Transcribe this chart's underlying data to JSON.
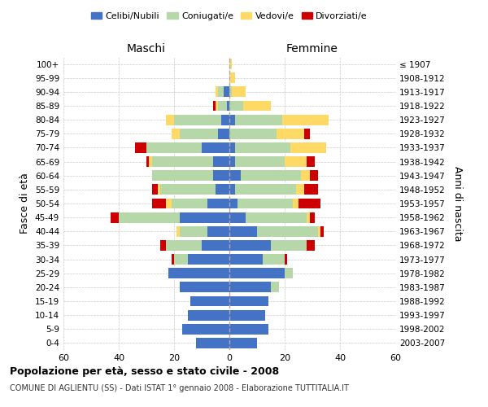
{
  "age_groups": [
    "100+",
    "95-99",
    "90-94",
    "85-89",
    "80-84",
    "75-79",
    "70-74",
    "65-69",
    "60-64",
    "55-59",
    "50-54",
    "45-49",
    "40-44",
    "35-39",
    "30-34",
    "25-29",
    "20-24",
    "15-19",
    "10-14",
    "5-9",
    "0-4"
  ],
  "birth_years": [
    "≤ 1907",
    "1908-1912",
    "1913-1917",
    "1918-1922",
    "1923-1927",
    "1928-1932",
    "1933-1937",
    "1938-1942",
    "1943-1947",
    "1948-1952",
    "1953-1957",
    "1958-1962",
    "1963-1967",
    "1968-1972",
    "1973-1977",
    "1978-1982",
    "1983-1987",
    "1988-1992",
    "1993-1997",
    "1998-2002",
    "2003-2007"
  ],
  "male_celibi": [
    0,
    0,
    2,
    1,
    3,
    4,
    10,
    6,
    6,
    5,
    8,
    18,
    8,
    10,
    15,
    22,
    18,
    14,
    15,
    17,
    12
  ],
  "male_coniugati": [
    0,
    0,
    2,
    3,
    17,
    14,
    20,
    22,
    22,
    20,
    13,
    22,
    10,
    13,
    5,
    0,
    0,
    0,
    0,
    0,
    0
  ],
  "male_vedovi": [
    0,
    0,
    1,
    1,
    3,
    3,
    0,
    1,
    0,
    1,
    2,
    0,
    1,
    0,
    0,
    0,
    0,
    0,
    0,
    0,
    0
  ],
  "male_divorziati": [
    0,
    0,
    0,
    1,
    0,
    0,
    4,
    1,
    0,
    2,
    5,
    3,
    0,
    2,
    1,
    0,
    0,
    0,
    0,
    0,
    0
  ],
  "female_nubili": [
    0,
    0,
    0,
    0,
    2,
    0,
    2,
    2,
    4,
    2,
    3,
    6,
    10,
    15,
    12,
    20,
    15,
    14,
    13,
    14,
    10
  ],
  "female_coniugate": [
    0,
    0,
    1,
    5,
    17,
    17,
    20,
    18,
    22,
    22,
    20,
    22,
    22,
    13,
    8,
    3,
    3,
    0,
    0,
    0,
    0
  ],
  "female_vedove": [
    1,
    2,
    5,
    10,
    17,
    10,
    13,
    8,
    3,
    3,
    2,
    1,
    1,
    0,
    0,
    0,
    0,
    0,
    0,
    0,
    0
  ],
  "female_divorziate": [
    0,
    0,
    0,
    0,
    0,
    2,
    0,
    3,
    3,
    5,
    8,
    2,
    1,
    3,
    1,
    0,
    0,
    0,
    0,
    0,
    0
  ],
  "color_celibi": "#4472C4",
  "color_coniugati": "#b6d7a8",
  "color_vedovi": "#FFD966",
  "color_divorziati": "#CC0000",
  "title": "Popolazione per età, sesso e stato civile - 2008",
  "subtitle": "COMUNE DI AGLIENTU (SS) - Dati ISTAT 1° gennaio 2008 - Elaborazione TUTTITALIA.IT",
  "xlabel_left": "Maschi",
  "xlabel_right": "Femmine",
  "ylabel_left": "Fasce di età",
  "ylabel_right": "Anni di nascita",
  "xlim": 60,
  "background_color": "#ffffff",
  "grid_color": "#cccccc"
}
